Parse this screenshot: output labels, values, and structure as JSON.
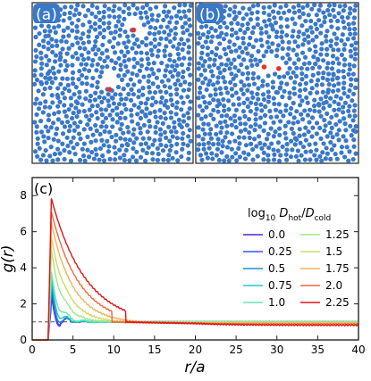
{
  "panels": {
    "a": {
      "label": "(a)",
      "hot_particles": [
        [
          0.63,
          0.17
        ],
        [
          0.48,
          0.54
        ]
      ]
    },
    "b": {
      "label": "(b)",
      "hot_particles": [
        [
          0.42,
          0.4
        ],
        [
          0.51,
          0.41
        ]
      ]
    },
    "c": {
      "label": "(c)"
    }
  },
  "colors": {
    "particle": "#3a78c8",
    "hot_particle": "#e8312a",
    "frame": "#222222",
    "reference_line": "#555555"
  },
  "chart_data": {
    "type": "line",
    "ylabel": "g(r)",
    "xlabel": "r/a",
    "xlim": [
      0,
      40
    ],
    "ylim": [
      0,
      9
    ],
    "xticks": [
      0,
      5,
      10,
      15,
      20,
      25,
      30,
      35,
      40
    ],
    "yticks": [
      0,
      2,
      4,
      6,
      8
    ],
    "grid": false,
    "legend_title": "log10 Dhot/Dcold",
    "legend_position": "top-right",
    "reference_line_y": 1.0,
    "series": [
      {
        "name": "0.0",
        "color": "#5a1edc",
        "peak": 1.9,
        "width": 0.8,
        "tail_y": 1.0,
        "d2": 0.5,
        "ripple": 1.0
      },
      {
        "name": "0.25",
        "color": "#3a55e6",
        "peak": 2.2,
        "width": 0.9,
        "tail_y": 1.0,
        "d2": 0.5,
        "ripple": 1.0
      },
      {
        "name": "0.5",
        "color": "#1e8ee0",
        "peak": 2.7,
        "width": 1.0,
        "tail_y": 1.0,
        "d2": 0.5,
        "ripple": 0.95
      },
      {
        "name": "0.75",
        "color": "#20c8c8",
        "peak": 3.0,
        "width": 1.3,
        "tail_y": 1.0,
        "d2": 0.4,
        "ripple": 0.85
      },
      {
        "name": "1.0",
        "color": "#60e8b0",
        "peak": 3.4,
        "width": 1.8,
        "tail_y": 1.0,
        "d2": 0.3,
        "ripple": 0.7
      },
      {
        "name": "1.25",
        "color": "#9de88a",
        "peak": 4.8,
        "width": 2.6,
        "tail_y": 0.99,
        "d2": 0.2,
        "ripple": 0.4
      },
      {
        "name": "1.5",
        "color": "#d2d860",
        "peak": 5.6,
        "width": 3.6,
        "tail_y": 0.97,
        "d2": 0.1,
        "ripple": 0.2
      },
      {
        "name": "1.75",
        "color": "#f0b45a",
        "peak": 6.5,
        "width": 4.8,
        "tail_y": 0.93,
        "d2": 0.0,
        "ripple": 0.08
      },
      {
        "name": "2.0",
        "color": "#f06a3c",
        "peak": 7.1,
        "width": 6.2,
        "tail_y": 0.88,
        "d2": 0.0,
        "ripple": 0.0
      },
      {
        "name": "2.25",
        "color": "#dc1616",
        "peak": 7.85,
        "width": 7.6,
        "tail_y": 0.82,
        "d2": 0.0,
        "ripple": 0.0
      }
    ]
  }
}
